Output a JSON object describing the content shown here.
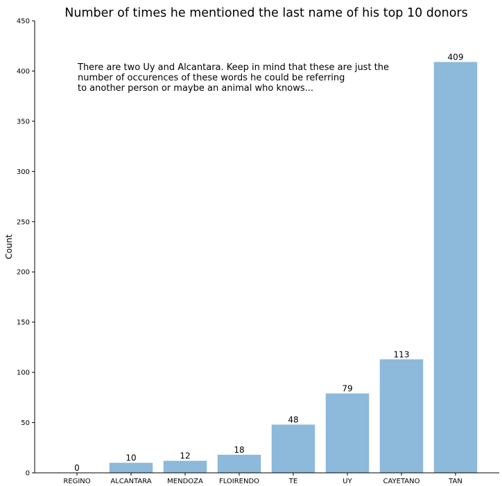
{
  "chart_data": {
    "type": "bar",
    "title": "Number of times he mentioned the last name of his top 10 donors",
    "xlabel": "",
    "ylabel": "Count",
    "categories": [
      "REGINO",
      "ALCANTARA",
      "MENDOZA",
      "FLOIRENDO",
      "TE",
      "UY",
      "CAYETANO",
      "TAN"
    ],
    "values": [
      0,
      10,
      12,
      18,
      48,
      79,
      113,
      409
    ],
    "data_labels": [
      "0",
      "10",
      "12",
      "18",
      "48",
      "79",
      "113",
      "409"
    ],
    "ylim": [
      0,
      450
    ],
    "yticks": [
      0,
      50,
      100,
      150,
      200,
      250,
      300,
      350,
      400,
      450
    ],
    "bar_color": "#8db9da",
    "grid": false,
    "annotation_lines": [
      "There are two Uy and Alcantara. Keep in mind that these are just the",
      "number of occurences of these words he could be referring",
      "to another person or maybe an animal who knows..."
    ]
  }
}
